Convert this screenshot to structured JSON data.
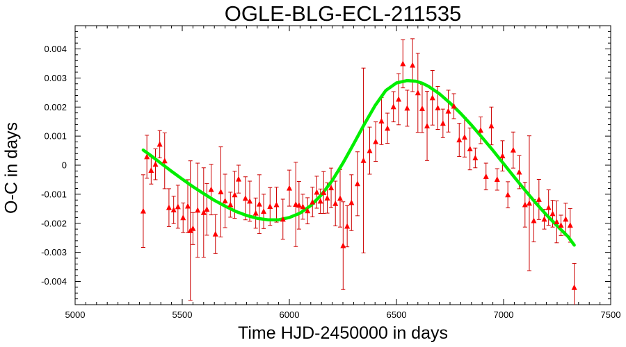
{
  "chart_data": {
    "type": "scatter",
    "title": "OGLE-BLG-ECL-211535",
    "xlabel": "Time HJD-2450000 in days",
    "ylabel": "O-C in days",
    "xlim": [
      5000,
      7500
    ],
    "ylim": [
      -0.0048,
      0.0048
    ],
    "xticks": [
      5000,
      5500,
      6000,
      6500,
      7000,
      7500
    ],
    "xtick_labels": [
      "5000",
      "5500",
      "6000",
      "6500",
      "7000",
      "7500"
    ],
    "yticks": [
      0.004,
      0.003,
      0.002,
      0.001,
      0,
      -0.001,
      -0.002,
      -0.003,
      -0.004
    ],
    "ytick_labels": [
      "0.004",
      "0.003",
      "0.002",
      "0.001",
      "0",
      "-0.001",
      "-0.002",
      "-0.003",
      "-0.004"
    ],
    "grid": false,
    "legend": "none",
    "colors": {
      "points": "#ff0000",
      "errorbars": "#cc0000",
      "fit": "#00ee00",
      "frame": "#000000"
    },
    "series": [
      {
        "kind": "points-with-errorbars",
        "x": [
          5318,
          5335,
          5355,
          5375,
          5395,
          5418,
          5438,
          5460,
          5480,
          5504,
          5526,
          5538,
          5550,
          5572,
          5600,
          5615,
          5635,
          5655,
          5680,
          5700,
          5725,
          5745,
          5763,
          5795,
          5815,
          5843,
          5860,
          5880,
          5910,
          5940,
          5970,
          6000,
          6030,
          6045,
          6063,
          6085,
          6108,
          6128,
          6145,
          6160,
          6177,
          6195,
          6215,
          6237,
          6251,
          6270,
          6290,
          6318,
          6346,
          6375,
          6403,
          6430,
          6458,
          6486,
          6510,
          6530,
          6550,
          6575,
          6600,
          6620,
          6643,
          6668,
          6693,
          6717,
          6742,
          6768,
          6793,
          6818,
          6843,
          6868,
          6893,
          6918,
          6943,
          6970,
          6995,
          7020,
          7045,
          7073,
          7100,
          7120,
          7141,
          7165,
          7190,
          7210,
          7229,
          7248,
          7268,
          7290,
          7311,
          7330
        ],
        "y": [
          -0.00158,
          0.00029,
          -0.00018,
          3e-05,
          0.00072,
          0.00015,
          -0.00146,
          -0.00154,
          -0.00143,
          -0.00181,
          -0.00141,
          -0.00225,
          -0.00218,
          -0.00155,
          -0.00163,
          -0.00152,
          -0.00084,
          -0.00237,
          -0.00092,
          -0.00123,
          -0.00136,
          -0.00102,
          -0.00048,
          -0.00114,
          -0.00124,
          -0.00165,
          -0.00134,
          -0.00159,
          -0.00142,
          -0.00136,
          -0.00186,
          -0.00079,
          -0.00135,
          -0.00138,
          -0.00143,
          -0.00157,
          -0.00127,
          -0.00093,
          -0.00124,
          -0.00094,
          -0.00113,
          -0.00078,
          -0.00132,
          -0.00114,
          -0.00277,
          -0.0021,
          -0.00129,
          -0.00064,
          0.00016,
          0.0005,
          0.00081,
          0.00152,
          0.00127,
          0.00201,
          0.00227,
          0.00349,
          0.00196,
          0.00344,
          0.00249,
          0.00195,
          0.00135,
          0.00232,
          0.00197,
          0.00144,
          0.00186,
          0.00203,
          0.00087,
          0.00096,
          0.00056,
          0.00025,
          0.0012,
          -0.00039,
          0.00135,
          -0.00049,
          0.00032,
          -0.00102,
          0.00052,
          -0.00024,
          -0.00136,
          -0.00131,
          -0.00191,
          -0.00118,
          -0.00186,
          -0.00146,
          -0.00167,
          -0.00195,
          -0.00207,
          -0.00186,
          -0.00207,
          -0.00421
        ],
        "yerr": [
          0.00125,
          0.00074,
          0.00047,
          0.00053,
          0.00047,
          0.00096,
          0.00065,
          0.00047,
          0.00074,
          0.00051,
          0.00091,
          0.0024,
          0.00055,
          0.00162,
          0.00154,
          0.00089,
          0.00087,
          0.00067,
          0.00155,
          0.00092,
          0.00043,
          0.00081,
          0.00048,
          0.00074,
          0.00069,
          0.00052,
          0.00101,
          0.00059,
          0.00065,
          0.0006,
          0.00069,
          0.00062,
          0.00145,
          0.00082,
          0.00043,
          0.00045,
          0.00051,
          0.00055,
          0.00042,
          0.00072,
          0.00052,
          0.00068,
          0.00077,
          0.00099,
          0.00151,
          0.00071,
          0.00096,
          0.0011,
          0.00318,
          0.00081,
          0.00068,
          0.00081,
          0.00052,
          0.00052,
          0.00088,
          0.00083,
          0.00062,
          0.00091,
          0.00136,
          0.00083,
          0.00119,
          0.00094,
          0.00074,
          0.00049,
          0.00072,
          0.00043,
          0.00057,
          0.00068,
          0.00072,
          0.00034,
          0.00046,
          0.00046,
          0.00065,
          0.00037,
          0.00052,
          0.00045,
          0.00062,
          0.00057,
          0.00077,
          0.00232,
          0.00073,
          0.00069,
          0.00034,
          0.00061,
          0.00046,
          0.00072,
          0.00035,
          0.00055,
          0.00058,
          0.00083
        ]
      },
      {
        "kind": "fit-curve",
        "x": [
          5318,
          5350,
          5400,
          5450,
          5500,
          5550,
          5600,
          5650,
          5700,
          5750,
          5800,
          5850,
          5900,
          5950,
          6000,
          6050,
          6100,
          6150,
          6200,
          6250,
          6300,
          6350,
          6400,
          6450,
          6500,
          6550,
          6590,
          6620,
          6650,
          6700,
          6750,
          6800,
          6850,
          6900,
          6950,
          7000,
          7050,
          7100,
          7150,
          7200,
          7250,
          7300,
          7330
        ],
        "y": [
          0.00052,
          0.00035,
          7e-05,
          -0.00021,
          -0.00048,
          -0.00074,
          -0.00098,
          -0.00121,
          -0.00141,
          -0.00159,
          -0.00173,
          -0.00183,
          -0.00188,
          -0.00188,
          -0.0018,
          -0.00165,
          -0.00139,
          -0.00102,
          -0.00053,
          7e-05,
          0.00073,
          0.00141,
          0.00205,
          0.00257,
          0.00283,
          0.00291,
          0.00289,
          0.00282,
          0.00271,
          0.00246,
          0.00214,
          0.00178,
          0.00138,
          0.00095,
          0.00051,
          5e-05,
          -0.00041,
          -0.00086,
          -0.0013,
          -0.00171,
          -0.00209,
          -0.00245,
          -0.00275
        ]
      }
    ]
  }
}
